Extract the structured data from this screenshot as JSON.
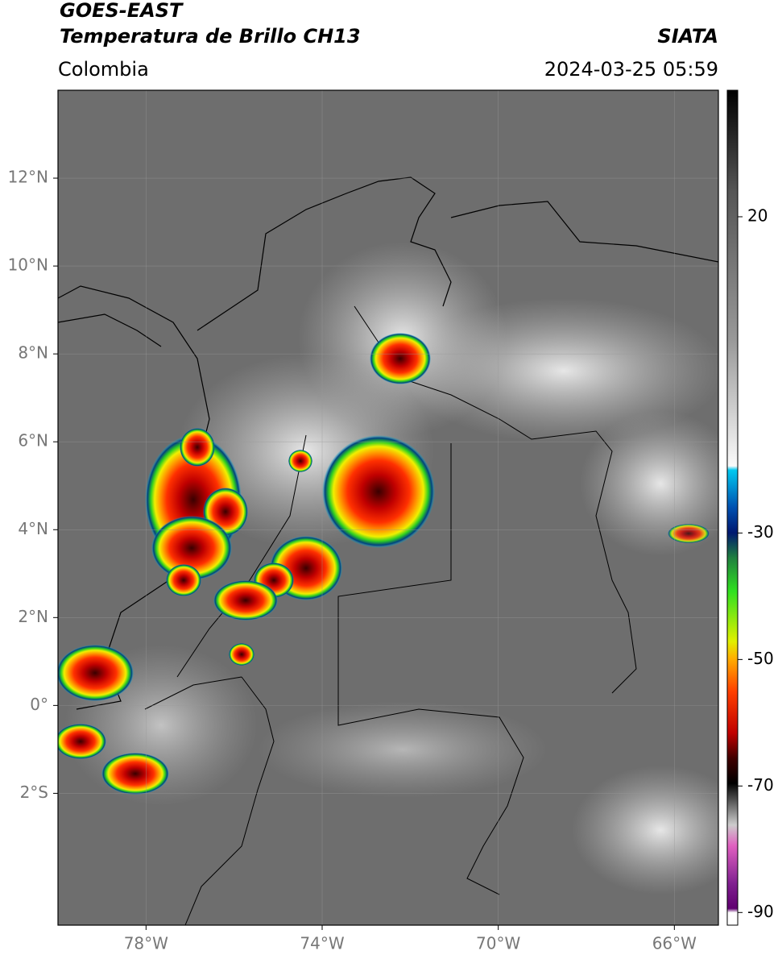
{
  "header": {
    "title": "GOES-EAST",
    "subtitle": "Temperatura de Brillo CH13",
    "source": "SIATA",
    "region": "Colombia",
    "datetime": "2024-03-25 05:59"
  },
  "map": {
    "xlim": [
      -80,
      -65
    ],
    "ylim": [
      -5,
      14
    ],
    "xticks": [
      {
        "value": -78,
        "label": "78°W"
      },
      {
        "value": -74,
        "label": "74°W"
      },
      {
        "value": -70,
        "label": "70°W"
      },
      {
        "value": -66,
        "label": "66°W"
      }
    ],
    "yticks": [
      {
        "value": 12,
        "label": "12°N"
      },
      {
        "value": 10,
        "label": "10°N"
      },
      {
        "value": 8,
        "label": "8°N"
      },
      {
        "value": 6,
        "label": "6°N"
      },
      {
        "value": 4,
        "label": "4°N"
      },
      {
        "value": 2,
        "label": "2°N"
      },
      {
        "value": 0,
        "label": "0°"
      },
      {
        "value": -2,
        "label": "2°S"
      }
    ],
    "grid": true
  },
  "colorbar": {
    "lim": [
      -92,
      40
    ],
    "ticks": [
      20,
      -30,
      -50,
      -70,
      -90
    ]
  }
}
